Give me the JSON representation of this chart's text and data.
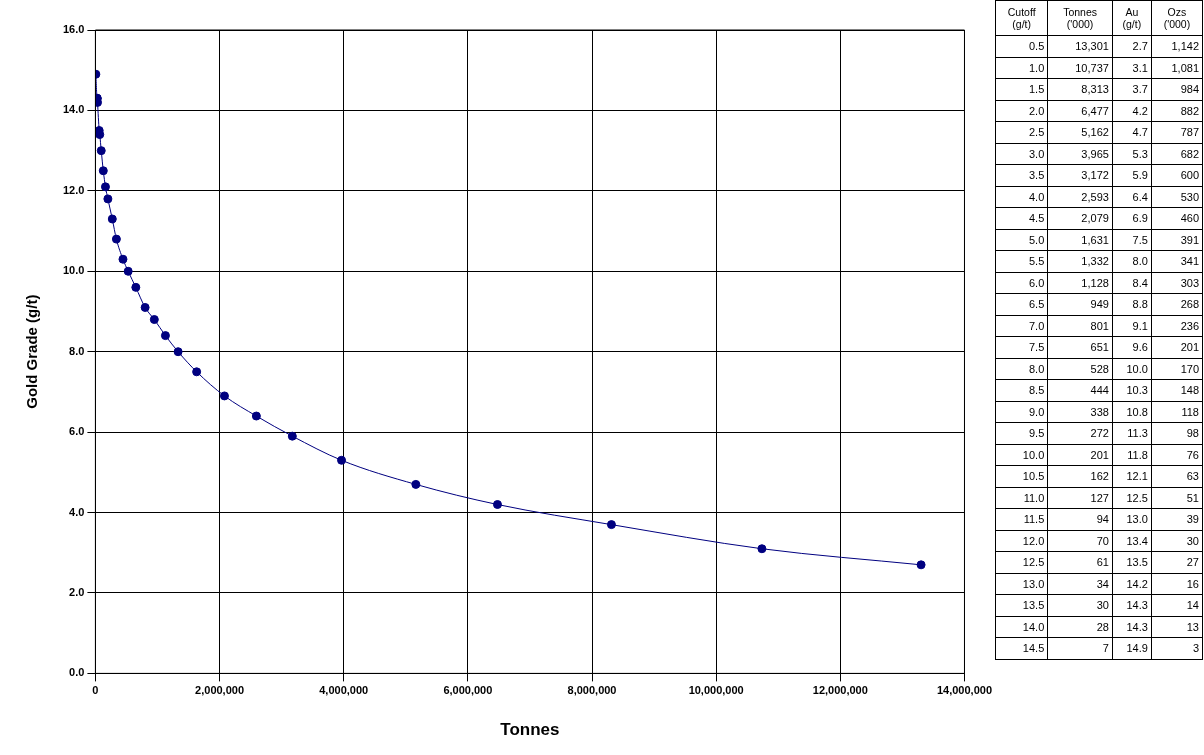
{
  "chart_data": [
    {
      "type": "scatter",
      "xlabel": "Tonnes",
      "ylabel": "Gold Grade (g/t)",
      "xlim": [
        0,
        14000000
      ],
      "ylim": [
        0,
        16
      ],
      "xticks": [
        {
          "value": 0,
          "label": "0"
        },
        {
          "value": 2000000,
          "label": "2,000,000"
        },
        {
          "value": 4000000,
          "label": "4,000,000"
        },
        {
          "value": 6000000,
          "label": "6,000,000"
        },
        {
          "value": 8000000,
          "label": "8,000,000"
        },
        {
          "value": 10000000,
          "label": "10,000,000"
        },
        {
          "value": 12000000,
          "label": "12,000,000"
        },
        {
          "value": 14000000,
          "label": "14,000,000"
        }
      ],
      "yticks": [
        {
          "value": 0,
          "label": "0.0"
        },
        {
          "value": 2,
          "label": "2.0"
        },
        {
          "value": 4,
          "label": "4.0"
        },
        {
          "value": 6,
          "label": "6.0"
        },
        {
          "value": 8,
          "label": "8.0"
        },
        {
          "value": 10,
          "label": "10.0"
        },
        {
          "value": 12,
          "label": "12.0"
        },
        {
          "value": 14,
          "label": "14.0"
        },
        {
          "value": 16,
          "label": "16.0"
        }
      ],
      "grid": true,
      "legend": false,
      "marker": "circle",
      "line_style": "solid",
      "series": [
        {
          "type": "line",
          "color": "#000080",
          "x": [
            13301000,
            10737000,
            8313000,
            6477000,
            5162000,
            3965000,
            3172000,
            2593000,
            2079000,
            1631000,
            1332000,
            1128000,
            949000,
            801000,
            651000,
            528000,
            444000,
            338000,
            272000,
            201000,
            162000,
            127000,
            94000,
            70000,
            61000,
            34000,
            30000,
            28000,
            7000
          ],
          "values": [
            2.7,
            3.1,
            3.7,
            4.2,
            4.7,
            5.3,
            5.9,
            6.4,
            6.9,
            7.5,
            8.0,
            8.4,
            8.8,
            9.1,
            9.6,
            10.0,
            10.3,
            10.8,
            11.3,
            11.8,
            12.1,
            12.5,
            13.0,
            13.4,
            13.5,
            14.2,
            14.3,
            14.3,
            14.9
          ]
        }
      ]
    },
    {
      "type": "other",
      "categories": [
        "Cutoff (g/t)",
        "Tonnes ('000)",
        "Au (g/t)",
        "Ozs ('000)"
      ],
      "cell_labels": [
        [
          "0.5",
          "13,301",
          "2.7",
          "1,142"
        ],
        [
          "1.0",
          "10,737",
          "3.1",
          "1,081"
        ],
        [
          "1.5",
          "8,313",
          "3.7",
          "984"
        ],
        [
          "2.0",
          "6,477",
          "4.2",
          "882"
        ],
        [
          "2.5",
          "5,162",
          "4.7",
          "787"
        ],
        [
          "3.0",
          "3,965",
          "5.3",
          "682"
        ],
        [
          "3.5",
          "3,172",
          "5.9",
          "600"
        ],
        [
          "4.0",
          "2,593",
          "6.4",
          "530"
        ],
        [
          "4.5",
          "2,079",
          "6.9",
          "460"
        ],
        [
          "5.0",
          "1,631",
          "7.5",
          "391"
        ],
        [
          "5.5",
          "1,332",
          "8.0",
          "341"
        ],
        [
          "6.0",
          "1,128",
          "8.4",
          "303"
        ],
        [
          "6.5",
          "949",
          "8.8",
          "268"
        ],
        [
          "7.0",
          "801",
          "9.1",
          "236"
        ],
        [
          "7.5",
          "651",
          "9.6",
          "201"
        ],
        [
          "8.0",
          "528",
          "10.0",
          "170"
        ],
        [
          "8.5",
          "444",
          "10.3",
          "148"
        ],
        [
          "9.0",
          "338",
          "10.8",
          "118"
        ],
        [
          "9.5",
          "272",
          "11.3",
          "98"
        ],
        [
          "10.0",
          "201",
          "11.8",
          "76"
        ],
        [
          "10.5",
          "162",
          "12.1",
          "63"
        ],
        [
          "11.0",
          "127",
          "12.5",
          "51"
        ],
        [
          "11.5",
          "94",
          "13.0",
          "39"
        ],
        [
          "12.0",
          "70",
          "13.4",
          "30"
        ],
        [
          "12.5",
          "61",
          "13.5",
          "27"
        ],
        [
          "13.0",
          "34",
          "14.2",
          "16"
        ],
        [
          "13.5",
          "30",
          "14.3",
          "14"
        ],
        [
          "14.0",
          "28",
          "14.3",
          "13"
        ],
        [
          "14.5",
          "7",
          "14.9",
          "3"
        ]
      ]
    }
  ]
}
